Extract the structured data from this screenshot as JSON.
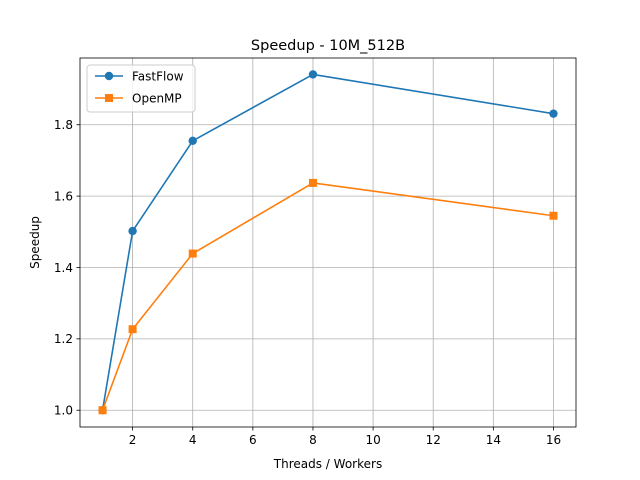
{
  "chart_data": {
    "type": "line",
    "title": "Speedup - 10M_512B",
    "xlabel": "Threads / Workers",
    "ylabel": "Speedup",
    "xlim": [
      0.25,
      16.75
    ],
    "ylim": [
      0.953,
      1.987
    ],
    "xticks": [
      2,
      4,
      6,
      8,
      10,
      12,
      14,
      16
    ],
    "yticks": [
      1.0,
      1.2,
      1.4,
      1.6,
      1.8
    ],
    "xtick_labels": [
      "2",
      "4",
      "6",
      "8",
      "10",
      "12",
      "14",
      "16"
    ],
    "ytick_labels": [
      "1.0",
      "1.2",
      "1.4",
      "1.6",
      "1.8"
    ],
    "grid": true,
    "legend_position": "top-left",
    "series": [
      {
        "name": "FastFlow",
        "color": "#1f77b4",
        "marker": "circle",
        "x": [
          1,
          2,
          4,
          8,
          16
        ],
        "y": [
          1.0,
          1.502,
          1.755,
          1.941,
          1.831
        ]
      },
      {
        "name": "OpenMP",
        "color": "#ff7f0e",
        "marker": "square",
        "x": [
          1,
          2,
          4,
          8,
          16
        ],
        "y": [
          1.0,
          1.227,
          1.439,
          1.637,
          1.545
        ]
      }
    ]
  }
}
